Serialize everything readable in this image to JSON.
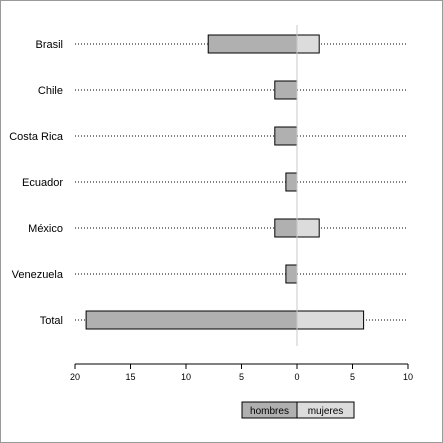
{
  "chart_data": {
    "type": "bar",
    "orientation": "horizontal-diverging",
    "categories": [
      "Brasil",
      "Chile",
      "Costa Rica",
      "Ecuador",
      "México",
      "Venezuela",
      "Total"
    ],
    "series": [
      {
        "name": "hombres",
        "values": [
          8,
          2,
          2,
          1,
          2,
          1,
          19
        ],
        "color": "#b0b0b0",
        "side": "left"
      },
      {
        "name": "mujeres",
        "values": [
          2,
          0,
          0,
          0,
          2,
          0,
          6
        ],
        "color": "#dcdcdc",
        "side": "right"
      }
    ],
    "x_ticks": [
      {
        "value": -20,
        "label": "20"
      },
      {
        "value": -15,
        "label": "15"
      },
      {
        "value": -10,
        "label": "10"
      },
      {
        "value": -5,
        "label": "5"
      },
      {
        "value": 0,
        "label": "0"
      },
      {
        "value": 5,
        "label": "5"
      },
      {
        "value": 10,
        "label": "10"
      }
    ],
    "xlim": [
      -20,
      10
    ],
    "grid": "dotted row guides",
    "legend_position": "bottom-center",
    "title": "",
    "xlabel": "",
    "ylabel": ""
  }
}
